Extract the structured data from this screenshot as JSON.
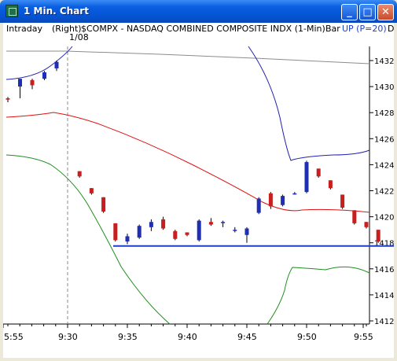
{
  "window": {
    "title": "1  Min. Chart"
  },
  "titlebar_buttons": {
    "minimize": "_",
    "maximize": "□",
    "close": "✕"
  },
  "infobar": {
    "period": "Intraday",
    "axis": "(Right)",
    "symbol": "$COMPX - NASDAQ COMBINED COMPOSITE INDX (1-Min)",
    "style": "Bar",
    "indicator": "UP (P=20)",
    "extra": "D"
  },
  "chart_data": {
    "type": "candlestick",
    "date_marker": "1/08",
    "ylim": [
      1411,
      1433
    ],
    "y_ticks": [
      1432,
      1430,
      1428,
      1426,
      1424,
      1422,
      1420,
      1418,
      1416,
      1414,
      1412
    ],
    "x_tick_labels": [
      "5:55",
      "9:30",
      "9:35",
      "9:40",
      "9:45",
      "9:50",
      "9:55"
    ],
    "support_level": 1418,
    "candles": [
      {
        "t": 9.25,
        "o": 1429.1,
        "h": 1429.2,
        "l": 1428.8,
        "c": 1429.0
      },
      {
        "t": 9.27,
        "o": 1430.0,
        "h": 1430.6,
        "l": 1429.1,
        "c": 1430.6
      },
      {
        "t": 9.28,
        "o": 1430.5,
        "h": 1430.6,
        "l": 1429.8,
        "c": 1430.1
      },
      {
        "t": 9.29,
        "o": 1430.6,
        "h": 1431.2,
        "l": 1430.5,
        "c": 1431.1
      },
      {
        "t": 9.3,
        "o": 1431.4,
        "h": 1432.0,
        "l": 1431.2,
        "c": 1431.9
      },
      {
        "t": 9.31,
        "o": 1423.5,
        "h": 1423.5,
        "l": 1423.0,
        "c": 1423.1
      },
      {
        "t": 9.32,
        "o": 1422.2,
        "h": 1422.2,
        "l": 1421.7,
        "c": 1421.8
      },
      {
        "t": 9.33,
        "o": 1421.5,
        "h": 1421.5,
        "l": 1420.3,
        "c": 1420.4
      },
      {
        "t": 9.34,
        "o": 1419.5,
        "h": 1419.5,
        "l": 1418.1,
        "c": 1418.2
      },
      {
        "t": 9.35,
        "o": 1418.1,
        "h": 1418.7,
        "l": 1417.9,
        "c": 1418.5
      },
      {
        "t": 9.36,
        "o": 1418.4,
        "h": 1419.4,
        "l": 1418.3,
        "c": 1419.3
      },
      {
        "t": 9.37,
        "o": 1419.2,
        "h": 1419.8,
        "l": 1418.9,
        "c": 1419.6
      },
      {
        "t": 9.38,
        "o": 1419.8,
        "h": 1420.0,
        "l": 1419.0,
        "c": 1419.1
      },
      {
        "t": 9.39,
        "o": 1418.9,
        "h": 1419.0,
        "l": 1418.2,
        "c": 1418.3
      },
      {
        "t": 9.4,
        "o": 1418.8,
        "h": 1418.8,
        "l": 1418.5,
        "c": 1418.6
      },
      {
        "t": 9.41,
        "o": 1418.2,
        "h": 1419.8,
        "l": 1418.1,
        "c": 1419.7
      },
      {
        "t": 9.42,
        "o": 1419.6,
        "h": 1419.9,
        "l": 1419.3,
        "c": 1419.4
      },
      {
        "t": 9.43,
        "o": 1419.6,
        "h": 1419.7,
        "l": 1419.2,
        "c": 1419.6
      },
      {
        "t": 9.44,
        "o": 1419.0,
        "h": 1419.2,
        "l": 1418.8,
        "c": 1419.0
      },
      {
        "t": 9.45,
        "o": 1418.6,
        "h": 1419.2,
        "l": 1418.0,
        "c": 1419.1
      },
      {
        "t": 9.46,
        "o": 1420.3,
        "h": 1421.5,
        "l": 1420.2,
        "c": 1421.4
      },
      {
        "t": 9.47,
        "o": 1421.8,
        "h": 1421.9,
        "l": 1420.6,
        "c": 1420.8
      },
      {
        "t": 9.48,
        "o": 1420.9,
        "h": 1421.7,
        "l": 1420.8,
        "c": 1421.6
      },
      {
        "t": 9.49,
        "o": 1421.8,
        "h": 1421.9,
        "l": 1421.7,
        "c": 1421.8
      },
      {
        "t": 9.5,
        "o": 1421.9,
        "h": 1424.3,
        "l": 1421.8,
        "c": 1424.2
      },
      {
        "t": 9.51,
        "o": 1423.7,
        "h": 1423.7,
        "l": 1423.0,
        "c": 1423.1
      },
      {
        "t": 9.52,
        "o": 1422.8,
        "h": 1422.8,
        "l": 1422.1,
        "c": 1422.2
      },
      {
        "t": 9.53,
        "o": 1421.7,
        "h": 1421.7,
        "l": 1420.6,
        "c": 1420.7
      },
      {
        "t": 9.54,
        "o": 1420.5,
        "h": 1420.5,
        "l": 1419.4,
        "c": 1419.5
      },
      {
        "t": 9.55,
        "o": 1419.6,
        "h": 1419.6,
        "l": 1419.1,
        "c": 1419.2
      },
      {
        "t": 9.56,
        "o": 1419.0,
        "h": 1419.0,
        "l": 1418.0,
        "c": 1418.1
      }
    ],
    "colors": {
      "up": "#1f2fb4",
      "down": "#c81e1e",
      "support": "#1f3fc8",
      "band_red": "#e01010",
      "band_green": "#1f8f1f",
      "band_blue": "#2020b0",
      "band_gray": "#8c8c8c"
    }
  }
}
